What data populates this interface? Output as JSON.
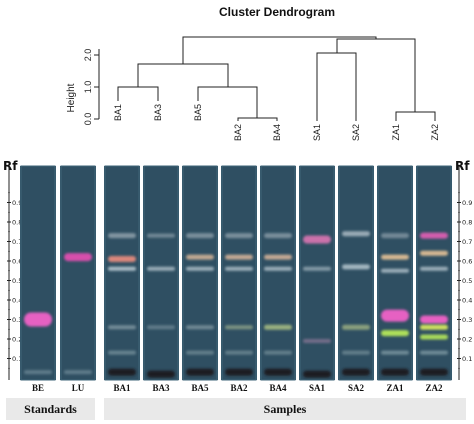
{
  "dendrogram": {
    "title": "Cluster Dendrogram",
    "ylabel": "Height",
    "yticks": [
      "0.0",
      "1.0",
      "2.0"
    ],
    "leaves": [
      "BA1",
      "BA3",
      "BA5",
      "BA2",
      "BA4",
      "SA1",
      "SA2",
      "ZA1",
      "ZA2"
    ]
  },
  "tlc": {
    "rf_label": "Rf",
    "rf_ticks": [
      "0.9",
      "0.8",
      "0.7",
      "0.6",
      "0.5",
      "0.4",
      "0.3",
      "0.2",
      "0.1"
    ],
    "lanes": [
      {
        "id": "BE",
        "group": "standards",
        "bands": [
          {
            "rf": 0.3,
            "color": "#f062c8",
            "h": 14,
            "op": 0.95
          },
          {
            "rf": 0.03,
            "color": "#8fa8b3",
            "h": 4,
            "op": 0.5
          }
        ]
      },
      {
        "id": "LU",
        "group": "standards",
        "bands": [
          {
            "rf": 0.62,
            "color": "#e04fb0",
            "h": 8,
            "op": 0.95
          },
          {
            "rf": 0.03,
            "color": "#8fa8b3",
            "h": 4,
            "op": 0.5
          }
        ]
      },
      {
        "id": "BA1",
        "group": "samples",
        "bands": [
          {
            "rf": 0.73,
            "color": "#b9c5cc",
            "h": 5,
            "op": 0.6
          },
          {
            "rf": 0.61,
            "color": "#e58b7e",
            "h": 6,
            "op": 0.95
          },
          {
            "rf": 0.56,
            "color": "#c9d9e0",
            "h": 4,
            "op": 0.8
          },
          {
            "rf": 0.26,
            "color": "#b7c7cc",
            "h": 4,
            "op": 0.5
          },
          {
            "rf": 0.13,
            "color": "#9fb7be",
            "h": 4,
            "op": 0.5
          },
          {
            "rf": 0.03,
            "color": "#1b1b22",
            "h": 7,
            "op": 1
          }
        ]
      },
      {
        "id": "BA3",
        "group": "samples",
        "bands": [
          {
            "rf": 0.73,
            "color": "#b4c1c9",
            "h": 4,
            "op": 0.5
          },
          {
            "rf": 0.56,
            "color": "#c6d4dc",
            "h": 4,
            "op": 0.7
          },
          {
            "rf": 0.26,
            "color": "#a9bcc3",
            "h": 4,
            "op": 0.4
          },
          {
            "rf": 0.02,
            "color": "#1b1b22",
            "h": 7,
            "op": 1
          }
        ]
      },
      {
        "id": "BA5",
        "group": "samples",
        "bands": [
          {
            "rf": 0.73,
            "color": "#b7c3cb",
            "h": 5,
            "op": 0.55
          },
          {
            "rf": 0.62,
            "color": "#d9b79a",
            "h": 5,
            "op": 0.85
          },
          {
            "rf": 0.56,
            "color": "#c9d7de",
            "h": 4,
            "op": 0.7
          },
          {
            "rf": 0.26,
            "color": "#b2c3c6",
            "h": 4,
            "op": 0.5
          },
          {
            "rf": 0.13,
            "color": "#a3b9bd",
            "h": 4,
            "op": 0.45
          },
          {
            "rf": 0.03,
            "color": "#1b1b22",
            "h": 7,
            "op": 1
          }
        ]
      },
      {
        "id": "BA2",
        "group": "samples",
        "bands": [
          {
            "rf": 0.73,
            "color": "#b7c3cb",
            "h": 5,
            "op": 0.55
          },
          {
            "rf": 0.62,
            "color": "#dcb79c",
            "h": 5,
            "op": 0.85
          },
          {
            "rf": 0.56,
            "color": "#c9d7de",
            "h": 4,
            "op": 0.7
          },
          {
            "rf": 0.26,
            "color": "#bccb9c",
            "h": 4,
            "op": 0.55
          },
          {
            "rf": 0.13,
            "color": "#a3b9bd",
            "h": 4,
            "op": 0.45
          },
          {
            "rf": 0.03,
            "color": "#1b1b22",
            "h": 7,
            "op": 1
          }
        ]
      },
      {
        "id": "BA4",
        "group": "samples",
        "bands": [
          {
            "rf": 0.73,
            "color": "#b7c3cb",
            "h": 5,
            "op": 0.55
          },
          {
            "rf": 0.62,
            "color": "#dcb79c",
            "h": 5,
            "op": 0.85
          },
          {
            "rf": 0.56,
            "color": "#c9d7de",
            "h": 4,
            "op": 0.7
          },
          {
            "rf": 0.26,
            "color": "#c6d98c",
            "h": 5,
            "op": 0.7
          },
          {
            "rf": 0.13,
            "color": "#a3b9bd",
            "h": 4,
            "op": 0.45
          },
          {
            "rf": 0.03,
            "color": "#1b1b22",
            "h": 7,
            "op": 1
          }
        ]
      },
      {
        "id": "SA1",
        "group": "samples",
        "bands": [
          {
            "rf": 0.71,
            "color": "#e678b8",
            "h": 8,
            "op": 0.85
          },
          {
            "rf": 0.56,
            "color": "#c9d7de",
            "h": 4,
            "op": 0.55
          },
          {
            "rf": 0.19,
            "color": "#b98cb0",
            "h": 4,
            "op": 0.5
          },
          {
            "rf": 0.02,
            "color": "#1b1b22",
            "h": 7,
            "op": 1
          }
        ]
      },
      {
        "id": "SA2",
        "group": "samples",
        "bands": [
          {
            "rf": 0.74,
            "color": "#c7d3da",
            "h": 5,
            "op": 0.7
          },
          {
            "rf": 0.57,
            "color": "#c9d9e0",
            "h": 5,
            "op": 0.75
          },
          {
            "rf": 0.26,
            "color": "#c8d68f",
            "h": 5,
            "op": 0.6
          },
          {
            "rf": 0.13,
            "color": "#a3b9bd",
            "h": 4,
            "op": 0.45
          },
          {
            "rf": 0.03,
            "color": "#1b1b22",
            "h": 7,
            "op": 1
          }
        ]
      },
      {
        "id": "ZA1",
        "group": "samples",
        "bands": [
          {
            "rf": 0.73,
            "color": "#b7c3cb",
            "h": 5,
            "op": 0.5
          },
          {
            "rf": 0.62,
            "color": "#e8c497",
            "h": 5,
            "op": 0.9
          },
          {
            "rf": 0.55,
            "color": "#c9d7de",
            "h": 4,
            "op": 0.7
          },
          {
            "rf": 0.32,
            "color": "#f062c8",
            "h": 12,
            "op": 0.95
          },
          {
            "rf": 0.23,
            "color": "#b6e85a",
            "h": 6,
            "op": 0.95
          },
          {
            "rf": 0.13,
            "color": "#b0c7cc",
            "h": 4,
            "op": 0.5
          },
          {
            "rf": 0.03,
            "color": "#1b1b22",
            "h": 7,
            "op": 1
          }
        ]
      },
      {
        "id": "ZA2",
        "group": "samples",
        "bands": [
          {
            "rf": 0.73,
            "color": "#e45fb6",
            "h": 6,
            "op": 0.9
          },
          {
            "rf": 0.64,
            "color": "#e8c497",
            "h": 5,
            "op": 0.9
          },
          {
            "rf": 0.56,
            "color": "#c9d7de",
            "h": 4,
            "op": 0.7
          },
          {
            "rf": 0.3,
            "color": "#f062c8",
            "h": 8,
            "op": 0.95
          },
          {
            "rf": 0.26,
            "color": "#d8e860",
            "h": 5,
            "op": 0.95
          },
          {
            "rf": 0.21,
            "color": "#b6e85a",
            "h": 5,
            "op": 0.9
          },
          {
            "rf": 0.13,
            "color": "#b0c7cc",
            "h": 4,
            "op": 0.5
          },
          {
            "rf": 0.03,
            "color": "#1b1b22",
            "h": 7,
            "op": 1
          }
        ]
      }
    ],
    "groups": {
      "standards": "Standards",
      "samples": "Samples"
    },
    "plate_color": "#2f4f62",
    "plate_edge_color": "#3f6478"
  }
}
